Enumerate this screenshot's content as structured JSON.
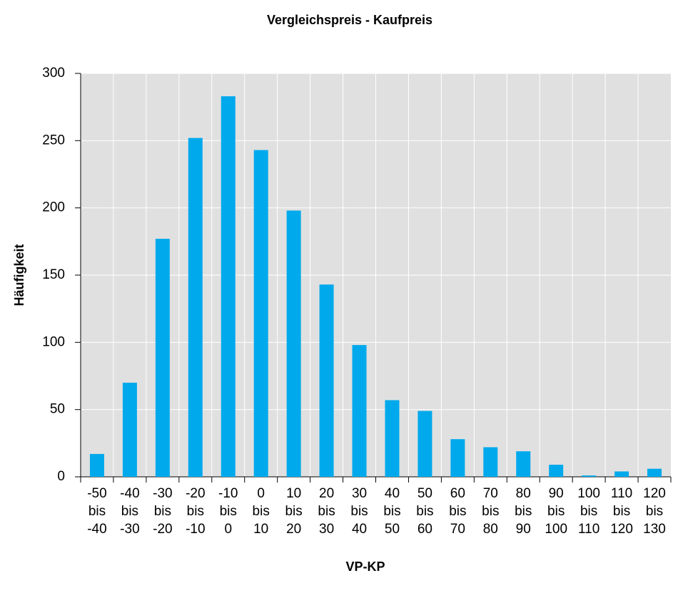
{
  "chart_data": {
    "type": "bar",
    "title": "Vergleichspreis  - Kaufpreis",
    "xlabel": "VP-KP",
    "ylabel": "Häufigkeit",
    "categories": [
      [
        "-50",
        "bis",
        "-40"
      ],
      [
        "-40",
        "bis",
        "-30"
      ],
      [
        "-30",
        "bis",
        "-20"
      ],
      [
        "-20",
        "bis",
        "-10"
      ],
      [
        "-10",
        "bis",
        "0"
      ],
      [
        "0",
        "bis",
        "10"
      ],
      [
        "10",
        "bis",
        "20"
      ],
      [
        "20",
        "bis",
        "30"
      ],
      [
        "30",
        "bis",
        "40"
      ],
      [
        "40",
        "bis",
        "50"
      ],
      [
        "50",
        "bis",
        "60"
      ],
      [
        "60",
        "bis",
        "70"
      ],
      [
        "70",
        "bis",
        "80"
      ],
      [
        "80",
        "bis",
        "90"
      ],
      [
        "90",
        "bis",
        "100"
      ],
      [
        "100",
        "bis",
        "110"
      ],
      [
        "110",
        "bis",
        "120"
      ],
      [
        "120",
        "bis",
        "130"
      ]
    ],
    "values": [
      17,
      70,
      177,
      252,
      283,
      243,
      198,
      143,
      98,
      57,
      49,
      28,
      22,
      19,
      9,
      1,
      4,
      6
    ],
    "color": "#00a9ec",
    "ylim": [
      0,
      300
    ],
    "yticks": [
      0,
      50,
      100,
      150,
      200,
      250,
      300
    ],
    "grid": true
  }
}
